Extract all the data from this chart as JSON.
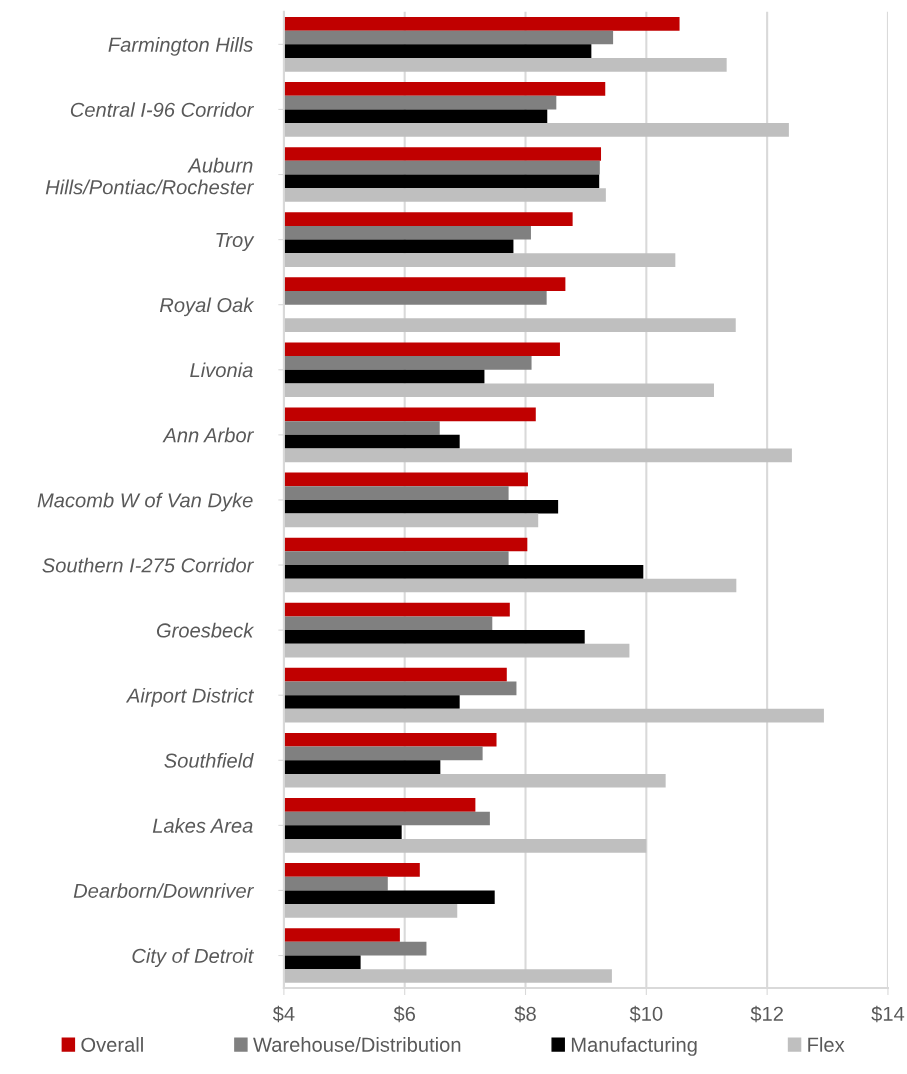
{
  "chart_data": {
    "type": "bar",
    "orientation": "horizontal",
    "categories": [
      "Farmington Hills",
      "Central I-96 Corridor",
      "Auburn\nHills/Pontiac/Rochester",
      "Troy",
      "Royal Oak",
      "Livonia",
      "Ann Arbor",
      "Macomb W of Van Dyke",
      "Southern I-275 Corridor",
      "Groesbeck",
      "Airport District",
      "Southfield",
      "Lakes Area",
      "Dearborn/Downriver",
      "City of Detroit"
    ],
    "series": [
      {
        "name": "Overall",
        "color": "#c00000",
        "values": [
          10.55,
          9.32,
          9.25,
          8.78,
          8.66,
          8.57,
          8.17,
          8.04,
          8.03,
          7.74,
          7.69,
          7.52,
          7.17,
          6.25,
          5.92
        ]
      },
      {
        "name": "Warehouse/Distribution",
        "color": "#808080",
        "values": [
          9.45,
          8.51,
          9.23,
          8.09,
          8.35,
          8.1,
          6.58,
          7.72,
          7.72,
          7.45,
          7.85,
          7.29,
          7.41,
          5.72,
          6.36
        ]
      },
      {
        "name": "Manufacturing",
        "color": "#000000",
        "values": [
          9.09,
          8.36,
          9.22,
          7.8,
          null,
          7.32,
          6.91,
          8.54,
          9.95,
          8.98,
          6.91,
          6.59,
          5.95,
          7.49,
          5.27
        ]
      },
      {
        "name": "Flex",
        "color": "#bfbfbf",
        "values": [
          11.33,
          12.36,
          9.33,
          10.48,
          11.48,
          11.12,
          12.41,
          8.21,
          11.49,
          9.72,
          12.94,
          10.32,
          10.0,
          6.87,
          9.43
        ]
      }
    ],
    "xlim": [
      4,
      14
    ],
    "xticks": [
      {
        "value": 4,
        "label": "$4"
      },
      {
        "value": 6,
        "label": "$6"
      },
      {
        "value": 8,
        "label": "$8"
      },
      {
        "value": 10,
        "label": "$10"
      },
      {
        "value": 12,
        "label": "$12"
      },
      {
        "value": 14,
        "label": "$14"
      }
    ],
    "grid": "x",
    "legend": "bottom"
  }
}
